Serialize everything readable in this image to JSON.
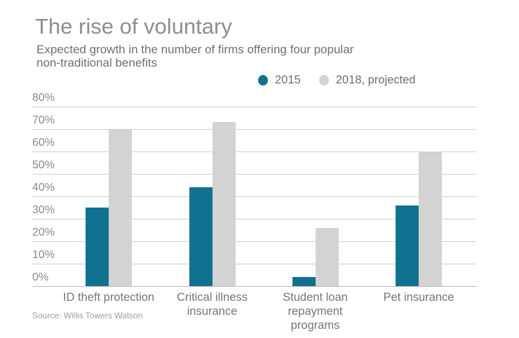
{
  "header": {
    "title": "The rise of voluntary",
    "subtitle_line1": "Expected growth in the number of firms offering four popular",
    "subtitle_line2": "non-traditional benefits"
  },
  "legend": {
    "items": [
      {
        "label": "2015",
        "color": "#12718f"
      },
      {
        "label": "2018, projected",
        "color": "#d3d3d3"
      }
    ]
  },
  "source_note": "Source: Willis Towers Watson",
  "chart_data": {
    "type": "bar",
    "title": "The rise of voluntary",
    "subtitle": "Expected growth in the number of firms offering four popular non-traditional benefits",
    "categories": [
      "ID theft protection",
      "Critical illness insurance",
      "Student loan repayment programs",
      "Pet insurance"
    ],
    "category_label_lines": [
      [
        "ID theft protection"
      ],
      [
        "Critical illness",
        "insurance"
      ],
      [
        "Student loan",
        "repayment",
        "programs"
      ],
      [
        "Pet insurance"
      ]
    ],
    "series": [
      {
        "name": "2015",
        "color": "#12718f",
        "values": [
          35,
          44,
          4,
          36
        ]
      },
      {
        "name": "2018, projected",
        "color": "#d3d3d3",
        "values": [
          70,
          73,
          26,
          60
        ]
      }
    ],
    "xlabel": "",
    "ylabel": "",
    "ylim": [
      0,
      80
    ],
    "ytick_step": 10,
    "ytick_suffix": "%",
    "grid": true,
    "legend_position": "top-right",
    "source": "Source: Willis Towers Watson"
  }
}
